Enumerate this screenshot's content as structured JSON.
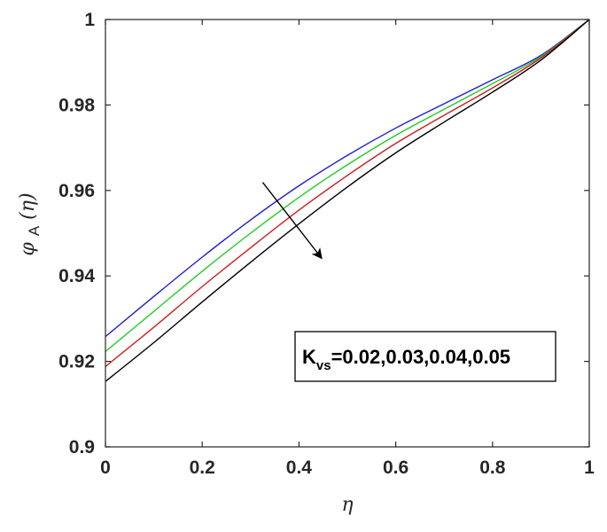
{
  "chart_data": {
    "type": "line",
    "title": "",
    "xlabel": "η",
    "ylabel": {
      "symbol": "φ",
      "subscript": "A",
      "argument": "(η)"
    },
    "xlim": [
      0,
      1
    ],
    "ylim": [
      0.9,
      1.0
    ],
    "xticks": [
      0,
      0.2,
      0.4,
      0.6,
      0.8,
      1
    ],
    "xtick_labels": [
      "0",
      "0.2",
      "0.4",
      "0.6",
      "0.8",
      "1"
    ],
    "yticks": [
      0.9,
      0.92,
      0.94,
      0.96,
      0.98,
      1.0
    ],
    "ytick_labels": [
      "0.9",
      "0.92",
      "0.94",
      "0.96",
      "0.98",
      "1"
    ],
    "grid": false,
    "x": [
      0,
      0.1,
      0.2,
      0.3,
      0.4,
      0.5,
      0.6,
      0.7,
      0.8,
      0.9,
      1.0
    ],
    "series": [
      {
        "color": "#1f1fcc",
        "values": [
          0.9258,
          0.9352,
          0.9444,
          0.9531,
          0.9611,
          0.9682,
          0.9746,
          0.9803,
          0.9859,
          0.9916,
          1.0
        ]
      },
      {
        "color": "#22cc22",
        "values": [
          0.9223,
          0.9317,
          0.9411,
          0.95,
          0.9584,
          0.966,
          0.9729,
          0.979,
          0.985,
          0.9913,
          1.0
        ]
      },
      {
        "color": "#cc1f1f",
        "values": [
          0.9188,
          0.928,
          0.9375,
          0.9466,
          0.9554,
          0.9635,
          0.971,
          0.9776,
          0.984,
          0.991,
          1.0
        ]
      },
      {
        "color": "#000000",
        "values": [
          0.9153,
          0.9244,
          0.9339,
          0.9432,
          0.9522,
          0.9608,
          0.9688,
          0.976,
          0.983,
          0.9905,
          1.0
        ]
      }
    ],
    "annotation": {
      "text_main": "K",
      "text_sub": "vs",
      "text_values": "=0.02,0.03,0.04,0.05",
      "arrow_direction": "increasing K_vs",
      "arrow_from": [
        0.325,
        0.9619
      ],
      "arrow_to": [
        0.445,
        0.9444
      ]
    },
    "legend": "none"
  }
}
